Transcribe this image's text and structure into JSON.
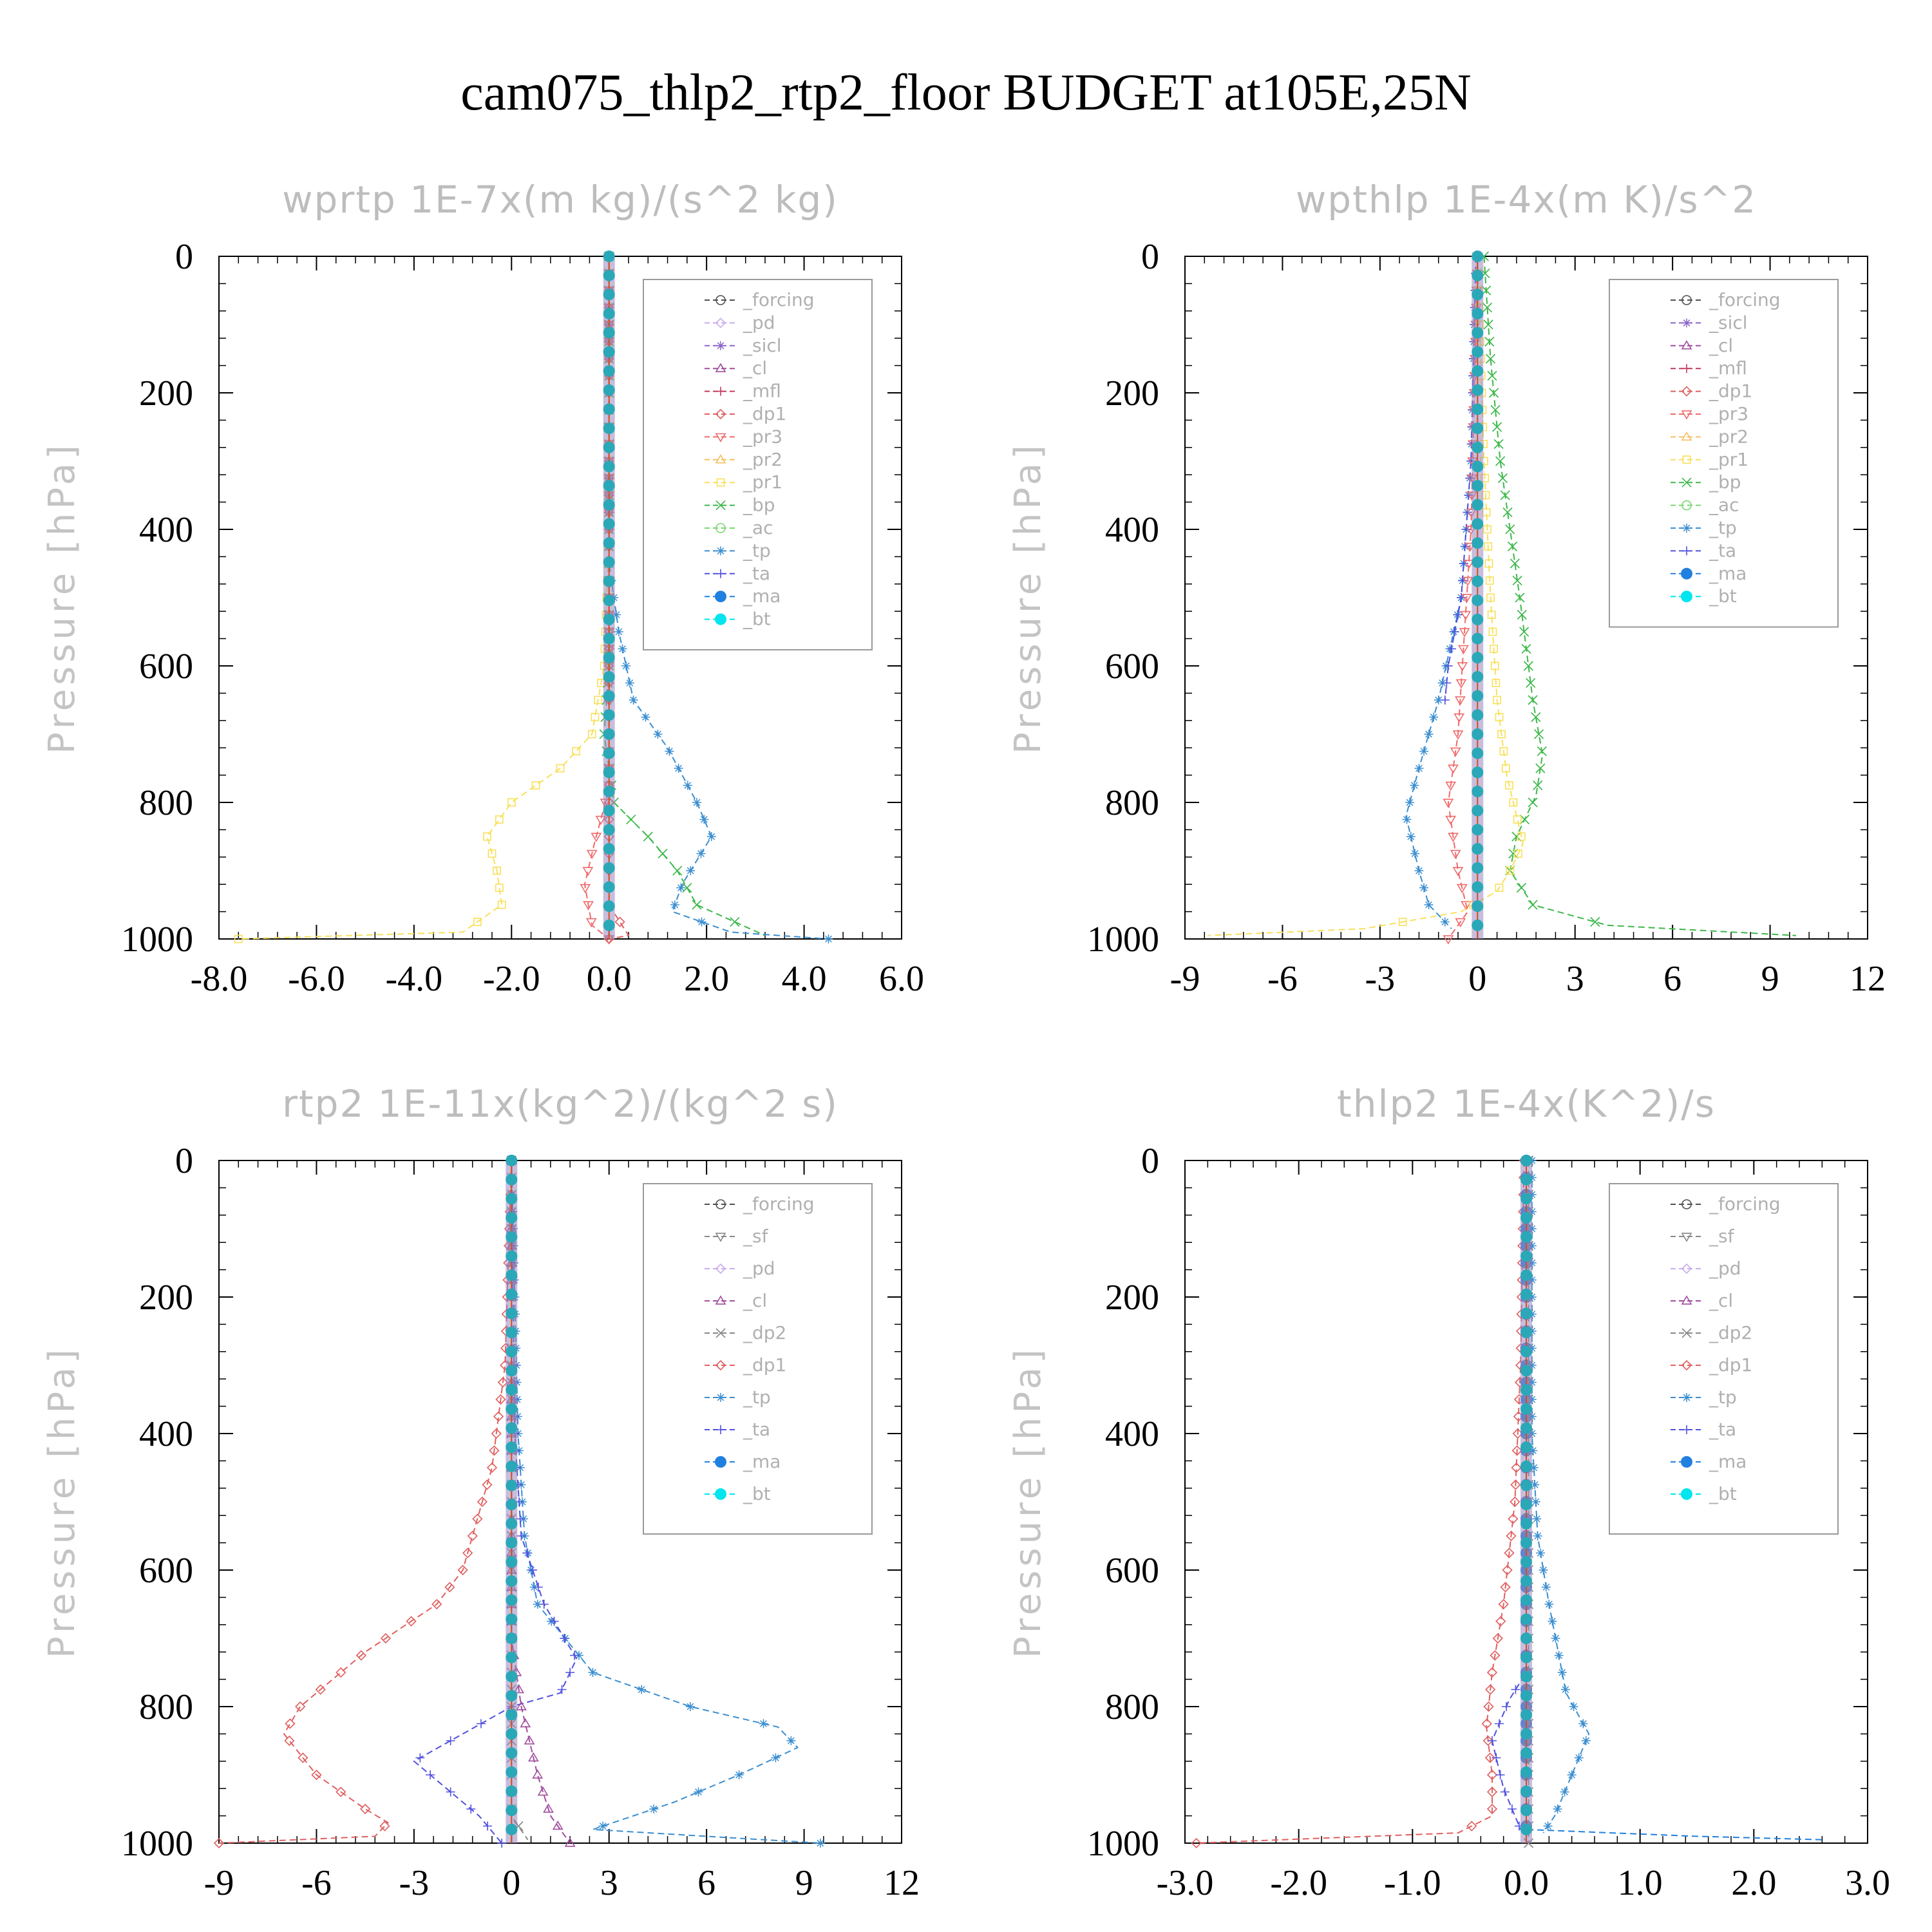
{
  "figure_title": "cam075_thlp2_rtp2_floor  BUDGET at105E,25N",
  "colors": {
    "_forcing": "#505050",
    "_pd": "#c9aef0",
    "_sicl": "#8a63c8",
    "_cl": "#a04d9e",
    "_mfl": "#c03a5a",
    "_dp1": "#e06060",
    "_pr3": "#f06a6a",
    "_pr2": "#f5c060",
    "_pr1": "#f8e05a",
    "_bp": "#3cb84a",
    "_ac": "#7ad870",
    "_tp": "#3a8ed0",
    "_ta": "#5050e0",
    "_ma": "#2080e0",
    "_bt": "#00e5ee"
  },
  "chart_data": [
    {
      "type": "line",
      "title": "wprtp  1E-7x(m kg)/(s^2 kg)",
      "ylabel": "Pressure [hPa]",
      "xlim": [
        -8,
        6
      ],
      "ylim": [
        1000,
        0
      ],
      "xticks": [
        "-8.0",
        "-6.0",
        "-4.0",
        "-2.0",
        "0.0",
        "2.0",
        "4.0",
        "6.0"
      ],
      "xtick_values": [
        -8,
        -6,
        -4,
        -2,
        0,
        2,
        4,
        6
      ],
      "yticks": [
        "0",
        "200",
        "400",
        "600",
        "800",
        "1000"
      ],
      "legend_position": "top-right",
      "legend": [
        "_forcing",
        "_pd",
        "_sicl",
        "_cl",
        "_mfl",
        "_dp1",
        "_pr3",
        "_pr2",
        "_pr1",
        "_bp",
        "_ac",
        "_tp",
        "_ta",
        "_ma",
        "_bt"
      ],
      "series": [
        {
          "name": "_pr1",
          "points": [
            [
              0,
              0
            ],
            [
              0,
              400
            ],
            [
              -0.05,
              500
            ],
            [
              -0.1,
              600
            ],
            [
              -0.35,
              700
            ],
            [
              -1.0,
              750
            ],
            [
              -2.0,
              800
            ],
            [
              -2.5,
              850
            ],
            [
              -2.3,
              900
            ],
            [
              -2.2,
              950
            ],
            [
              -3.0,
              990
            ],
            [
              -7.6,
              1000
            ]
          ]
        },
        {
          "name": "_bp",
          "points": [
            [
              0,
              0
            ],
            [
              0,
              600
            ],
            [
              -0.1,
              700
            ],
            [
              0.1,
              800
            ],
            [
              0.8,
              850
            ],
            [
              1.4,
              900
            ],
            [
              1.8,
              950
            ],
            [
              3.2,
              995
            ]
          ]
        },
        {
          "name": "_tp",
          "points": [
            [
              0,
              0
            ],
            [
              0,
              450
            ],
            [
              0.2,
              550
            ],
            [
              0.5,
              650
            ],
            [
              1.2,
              720
            ],
            [
              1.8,
              800
            ],
            [
              2.1,
              850
            ],
            [
              1.5,
              920
            ],
            [
              1.3,
              960
            ],
            [
              2.5,
              990
            ],
            [
              4.5,
              1000
            ]
          ]
        },
        {
          "name": "_pr3",
          "points": [
            [
              0,
              0
            ],
            [
              0,
              780
            ],
            [
              -0.3,
              860
            ],
            [
              -0.5,
              920
            ],
            [
              -0.35,
              980
            ],
            [
              0,
              1000
            ]
          ]
        },
        {
          "name": "_dp1",
          "points": [
            [
              0,
              0
            ],
            [
              0,
              950
            ],
            [
              0.4,
              995
            ],
            [
              0,
              1000
            ]
          ]
        }
      ]
    },
    {
      "type": "line",
      "title": "wpthlp  1E-4x(m K)/s^2",
      "ylabel": "Pressure [hPa]",
      "xlim": [
        -9,
        12
      ],
      "ylim": [
        1000,
        0
      ],
      "xticks": [
        "-9",
        "-6",
        "-3",
        "0",
        "3",
        "6",
        "9",
        "12"
      ],
      "xtick_values": [
        -9,
        -6,
        -3,
        0,
        3,
        6,
        9,
        12
      ],
      "yticks": [
        "0",
        "200",
        "400",
        "600",
        "800",
        "1000"
      ],
      "legend_position": "top-right",
      "legend": [
        "_forcing",
        "_sicl",
        "_cl",
        "_mfl",
        "_dp1",
        "_pr3",
        "_pr2",
        "_pr1",
        "_bp",
        "_ac",
        "_tp",
        "_ta",
        "_ma",
        "_bt"
      ],
      "series": [
        {
          "name": "_bp",
          "points": [
            [
              0.2,
              0
            ],
            [
              0.4,
              150
            ],
            [
              0.7,
              300
            ],
            [
              1.0,
              400
            ],
            [
              1.3,
              500
            ],
            [
              1.7,
              650
            ],
            [
              2.0,
              730
            ],
            [
              1.8,
              790
            ],
            [
              1.2,
              850
            ],
            [
              1.0,
              900
            ],
            [
              1.7,
              950
            ],
            [
              4.0,
              980
            ],
            [
              9.8,
              995
            ]
          ]
        },
        {
          "name": "_tp",
          "points": [
            [
              -0.05,
              0
            ],
            [
              -0.2,
              300
            ],
            [
              -0.5,
              500
            ],
            [
              -1.2,
              650
            ],
            [
              -1.8,
              750
            ],
            [
              -2.2,
              820
            ],
            [
              -1.8,
              900
            ],
            [
              -1.5,
              950
            ],
            [
              -0.8,
              985
            ]
          ]
        },
        {
          "name": "_ta",
          "points": [
            [
              -0.05,
              0
            ],
            [
              -0.2,
              300
            ],
            [
              -0.5,
              500
            ],
            [
              -0.9,
              600
            ],
            [
              -1.0,
              650
            ]
          ]
        },
        {
          "name": "_pr3",
          "points": [
            [
              0,
              0
            ],
            [
              -0.2,
              400
            ],
            [
              -0.6,
              700
            ],
            [
              -0.9,
              800
            ],
            [
              -0.6,
              900
            ],
            [
              -0.3,
              960
            ],
            [
              -0.9,
              1000
            ]
          ]
        },
        {
          "name": "_pr1",
          "points": [
            [
              0,
              0
            ],
            [
              0.2,
              300
            ],
            [
              0.4,
              500
            ],
            [
              0.6,
              650
            ],
            [
              0.9,
              760
            ],
            [
              1.2,
              820
            ],
            [
              1.4,
              860
            ],
            [
              1.0,
              900
            ],
            [
              0.6,
              930
            ],
            [
              -0.5,
              960
            ],
            [
              -3.5,
              985
            ],
            [
              -8.3,
              995
            ]
          ]
        }
      ]
    },
    {
      "type": "line",
      "title": "rtp2  1E-11x(kg^2)/(kg^2 s)",
      "ylabel": "Pressure [hPa]",
      "xlim": [
        -9,
        12
      ],
      "ylim": [
        1000,
        0
      ],
      "xticks": [
        "-9",
        "-6",
        "-3",
        "0",
        "3",
        "6",
        "9",
        "12"
      ],
      "xtick_values": [
        -9,
        -6,
        -3,
        0,
        3,
        6,
        9,
        12
      ],
      "yticks": [
        "0",
        "200",
        "400",
        "600",
        "800",
        "1000"
      ],
      "legend_position": "top-right",
      "legend": [
        "_forcing",
        "_sf",
        "_pd",
        "_cl",
        "_dp2",
        "_dp1",
        "_tp",
        "_ta",
        "_ma",
        "_bt"
      ],
      "series": [
        {
          "name": "_dp1",
          "points": [
            [
              0,
              0
            ],
            [
              -0.2,
              300
            ],
            [
              -0.6,
              450
            ],
            [
              -1.2,
              550
            ],
            [
              -1.5,
              600
            ],
            [
              -2.3,
              650
            ],
            [
              -4.5,
              720
            ],
            [
              -6.5,
              800
            ],
            [
              -7.0,
              840
            ],
            [
              -6.0,
              900
            ],
            [
              -4.5,
              950
            ],
            [
              -3.8,
              970
            ],
            [
              -4.2,
              990
            ],
            [
              -9.0,
              1000
            ]
          ]
        },
        {
          "name": "_tp",
          "points": [
            [
              0,
              0
            ],
            [
              0.2,
              400
            ],
            [
              0.4,
              550
            ],
            [
              0.8,
              650
            ],
            [
              2.5,
              750
            ],
            [
              5.5,
              800
            ],
            [
              8.2,
              830
            ],
            [
              8.8,
              860
            ],
            [
              7.0,
              900
            ],
            [
              5.0,
              940
            ],
            [
              2.5,
              980
            ],
            [
              9.5,
              1000
            ]
          ]
        },
        {
          "name": "_ta",
          "points": [
            [
              0,
              0
            ],
            [
              0.1,
              400
            ],
            [
              0.3,
              550
            ],
            [
              1.0,
              650
            ],
            [
              2.0,
              730
            ],
            [
              1.5,
              780
            ],
            [
              0,
              800
            ],
            [
              -1.5,
              840
            ],
            [
              -3.0,
              880
            ],
            [
              -2.0,
              920
            ],
            [
              -1.0,
              960
            ],
            [
              -0.3,
              1000
            ]
          ]
        },
        {
          "name": "_cl",
          "points": [
            [
              0,
              0
            ],
            [
              0,
              700
            ],
            [
              0.3,
              800
            ],
            [
              0.8,
              900
            ],
            [
              1.2,
              960
            ],
            [
              1.8,
              1000
            ]
          ]
        },
        {
          "name": "_dp2",
          "points": [
            [
              0,
              0
            ],
            [
              0,
              960
            ],
            [
              0.5,
              995
            ]
          ]
        }
      ]
    },
    {
      "type": "line",
      "title": "thlp2  1E-4x(K^2)/s",
      "ylabel": "Pressure [hPa]",
      "xlim": [
        -3,
        3
      ],
      "ylim": [
        1000,
        0
      ],
      "xticks": [
        "-3.0",
        "-2.0",
        "-1.0",
        "0.0",
        "1.0",
        "2.0",
        "3.0"
      ],
      "xtick_values": [
        -3,
        -2,
        -1,
        0,
        1,
        2,
        3
      ],
      "yticks": [
        "0",
        "200",
        "400",
        "600",
        "800",
        "1000"
      ],
      "legend_position": "top-right",
      "legend": [
        "_forcing",
        "_sf",
        "_pd",
        "_cl",
        "_dp2",
        "_dp1",
        "_tp",
        "_ta",
        "_ma",
        "_bt"
      ],
      "series": [
        {
          "name": "_dp1",
          "points": [
            [
              -0.02,
              0
            ],
            [
              -0.05,
              300
            ],
            [
              -0.1,
              500
            ],
            [
              -0.2,
              650
            ],
            [
              -0.3,
              750
            ],
            [
              -0.35,
              830
            ],
            [
              -0.3,
              900
            ],
            [
              -0.3,
              960
            ],
            [
              -0.6,
              985
            ],
            [
              -2.9,
              1000
            ]
          ]
        },
        {
          "name": "_tp",
          "points": [
            [
              0.05,
              0
            ],
            [
              0.05,
              400
            ],
            [
              0.1,
              550
            ],
            [
              0.2,
              650
            ],
            [
              0.35,
              780
            ],
            [
              0.55,
              840
            ],
            [
              0.4,
              900
            ],
            [
              0.25,
              960
            ],
            [
              0.15,
              985
            ]
          ]
        },
        {
          "name": "_ta",
          "points": [
            [
              0,
              0
            ],
            [
              0,
              750
            ],
            [
              -0.15,
              790
            ],
            [
              -0.3,
              850
            ],
            [
              -0.2,
              920
            ],
            [
              -0.05,
              980
            ]
          ]
        },
        {
          "name": "_ma",
          "points": [
            [
              0,
              0
            ],
            [
              0,
              980
            ],
            [
              1.5,
              990
            ],
            [
              2.6,
              995
            ]
          ]
        },
        {
          "name": "_dp2",
          "points": [
            [
              0.02,
              0
            ],
            [
              0.02,
              500
            ],
            [
              0.02,
              1000
            ]
          ]
        }
      ]
    }
  ]
}
